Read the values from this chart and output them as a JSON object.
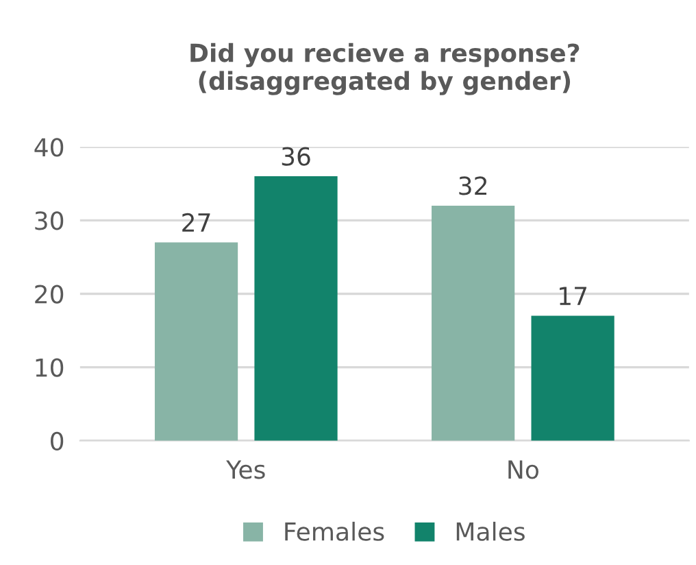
{
  "chart_data": {
    "type": "bar",
    "title": "Did you recieve a response?\n(disaggregated by gender)",
    "categories": [
      "Yes",
      "No"
    ],
    "series": [
      {
        "name": "Females",
        "color": "#88b4a6",
        "values": [
          27,
          32
        ]
      },
      {
        "name": "Males",
        "color": "#12836b",
        "values": [
          36,
          17
        ]
      }
    ],
    "ylim": [
      0,
      40
    ],
    "yticks": [
      0,
      10,
      20,
      30,
      40
    ],
    "grid": "y",
    "legend": "bottom",
    "data_labels": true
  }
}
